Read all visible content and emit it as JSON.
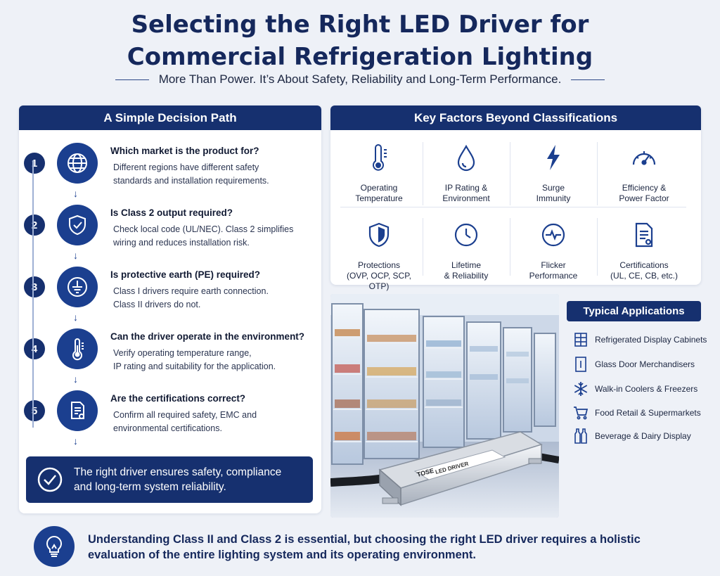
{
  "title": {
    "line1": "Selecting the Right LED Driver for",
    "line2": "Commercial Refrigeration Lighting"
  },
  "subtitle": "More Than Power. It’s About Safety, Reliability and Long-Term Performance.",
  "decision_path": {
    "heading": "A Simple Decision Path",
    "steps": [
      {
        "num": "1",
        "icon": "globe-icon",
        "question": "Which market is the product for?",
        "line1": "Different regions have different safety",
        "line2": "standards and installation requirements."
      },
      {
        "num": "2",
        "icon": "shield-check-icon",
        "question": "Is Class 2 output required?",
        "line1": "Check local code (UL/NEC). Class 2 simplifies",
        "line2": "wiring and reduces installation risk."
      },
      {
        "num": "3",
        "icon": "earth-ground-icon",
        "question": "Is protective earth (PE) required?",
        "line1": "Class I drivers require earth connection.",
        "line2": "Class II drivers do not."
      },
      {
        "num": "4",
        "icon": "thermometer-icon",
        "question": "Can the driver operate in the environment?",
        "line1": "Verify operating temperature range,",
        "line2": "IP rating and suitability for the application."
      },
      {
        "num": "5",
        "icon": "certificate-document-icon",
        "question": "Are the certifications correct?",
        "line1": "Confirm all required safety, EMC and",
        "line2": "environmental certifications."
      }
    ],
    "callout": {
      "line1": "The right driver ensures safety, compliance",
      "line2": "and long-term system reliability."
    }
  },
  "key_factors": {
    "heading": "Key Factors Beyond Classifications",
    "items": [
      {
        "icon": "thermometer-icon",
        "line1": "Operating",
        "line2": "Temperature"
      },
      {
        "icon": "water-drop-icon",
        "line1": "IP Rating &",
        "line2": "Environment"
      },
      {
        "icon": "lightning-icon",
        "line1": "Surge",
        "line2": "Immunity"
      },
      {
        "icon": "gauge-icon",
        "line1": "Efficiency &",
        "line2": "Power Factor"
      },
      {
        "icon": "shield-icon",
        "line1": "Protections",
        "line2": "(OVP, OCP, SCP, OTP)"
      },
      {
        "icon": "clock-icon",
        "line1": "Lifetime",
        "line2": "& Reliability"
      },
      {
        "icon": "pulse-icon",
        "line1": "Flicker",
        "line2": "Performance"
      },
      {
        "icon": "document-icon",
        "line1": "Certifications",
        "line2": "(UL, CE, CB, etc.)"
      }
    ]
  },
  "applications": {
    "heading": "Typical Applications",
    "items": [
      {
        "icon": "display-cabinet-icon",
        "label": "Refrigerated Display Cabinets"
      },
      {
        "icon": "glass-door-icon",
        "label": "Glass Door Merchandisers"
      },
      {
        "icon": "snowflake-icon",
        "label": "Walk-in Coolers & Freezers"
      },
      {
        "icon": "shopping-cart-icon",
        "label": "Food Retail & Supermarkets"
      },
      {
        "icon": "bottles-icon",
        "label": "Beverage & Dairy Display"
      }
    ]
  },
  "driver_label": {
    "brand": "TOSE",
    "text": "LED DRIVER"
  },
  "bottom": {
    "line1": "Understanding Class II and Class 2 is essential, but choosing the right LED driver requires a holistic",
    "line2": "evaluation of the entire lighting system and its operating environment."
  }
}
